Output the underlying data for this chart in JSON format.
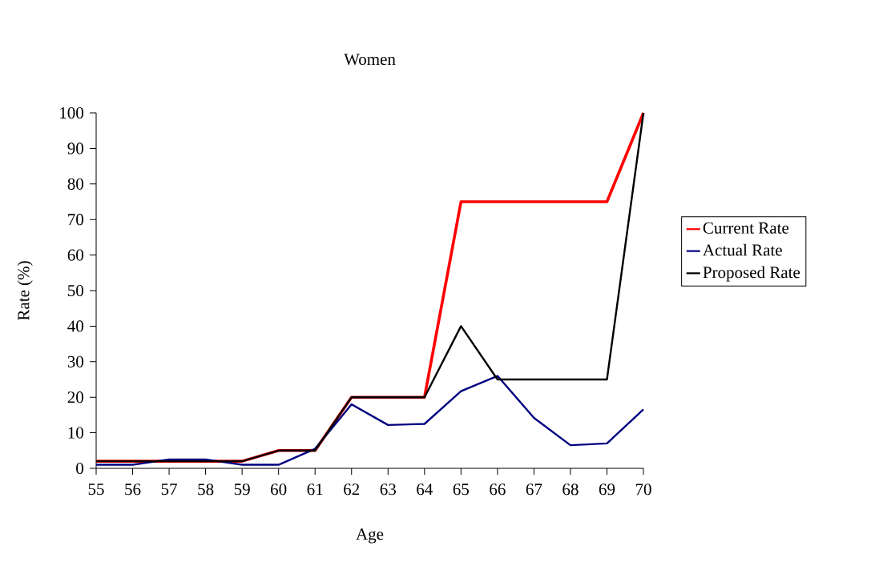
{
  "chart_data": {
    "type": "line",
    "title": "Women",
    "xlabel": "Age",
    "ylabel": "Rate (%)",
    "x": [
      55,
      56,
      57,
      58,
      59,
      60,
      61,
      62,
      63,
      64,
      65,
      66,
      67,
      68,
      69,
      70
    ],
    "series": [
      {
        "name": "Current Rate",
        "color": "#ff0000",
        "values": [
          2,
          2,
          2,
          2,
          2,
          5,
          5,
          20,
          20,
          20,
          75,
          75,
          75,
          75,
          75,
          100
        ]
      },
      {
        "name": "Actual Rate",
        "color": "#000080",
        "values": [
          1,
          1,
          2.5,
          2.5,
          1,
          1,
          5.5,
          18,
          12.2,
          12.5,
          21.7,
          26,
          14.2,
          6.5,
          7,
          16.6
        ]
      },
      {
        "name": "Proposed Rate",
        "color": "#000000",
        "values": [
          2,
          2,
          2,
          2,
          2,
          5,
          5,
          20,
          20,
          20,
          40,
          25,
          25,
          25,
          25,
          100
        ]
      }
    ],
    "xlim": [
      55,
      70
    ],
    "xticks": [
      55,
      56,
      57,
      58,
      59,
      60,
      61,
      62,
      63,
      64,
      65,
      66,
      67,
      68,
      69,
      70
    ],
    "ylim": [
      0,
      100
    ],
    "yticks": [
      0,
      10,
      20,
      30,
      40,
      50,
      60,
      70,
      80,
      90,
      100
    ],
    "grid": false,
    "legend": "right",
    "marker": "none",
    "line_style": "solid"
  }
}
